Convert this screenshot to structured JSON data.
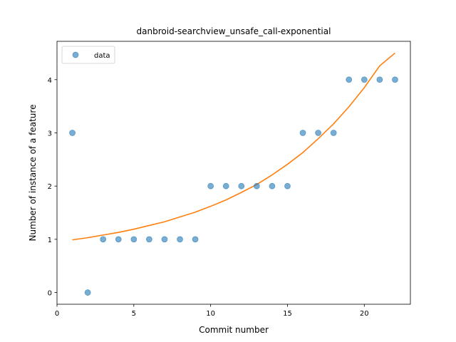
{
  "chart_data": {
    "type": "scatter",
    "title": "danbroid-searchview_unsafe_call-exponential",
    "xlabel": "Commit number",
    "ylabel": "Number of instance of a feature",
    "xlim": [
      0,
      23
    ],
    "ylim": [
      -0.22,
      4.72
    ],
    "xticks": [
      0,
      5,
      10,
      15,
      20
    ],
    "yticks": [
      0,
      1,
      2,
      3,
      4
    ],
    "grid": false,
    "legend_position": "top-left",
    "series": [
      {
        "name": "data",
        "kind": "scatter",
        "color": "#1f77b4",
        "x": [
          1,
          2,
          3,
          4,
          5,
          6,
          7,
          8,
          9,
          10,
          11,
          12,
          13,
          14,
          15,
          16,
          17,
          18,
          19,
          20,
          21,
          22
        ],
        "y": [
          3,
          0,
          1,
          1,
          1,
          1,
          1,
          1,
          1,
          2,
          2,
          2,
          2,
          2,
          2,
          3,
          3,
          3,
          4,
          4,
          4,
          4
        ]
      },
      {
        "kind": "line",
        "color": "#ff7f0e",
        "x": [
          1,
          2,
          3,
          4,
          5,
          6,
          7,
          8,
          9,
          10,
          11,
          12,
          13,
          14,
          15,
          16,
          17,
          18,
          19,
          20,
          21,
          22
        ],
        "y": [
          0.99,
          1.03,
          1.08,
          1.13,
          1.19,
          1.26,
          1.33,
          1.42,
          1.51,
          1.62,
          1.74,
          1.88,
          2.03,
          2.21,
          2.41,
          2.63,
          2.89,
          3.17,
          3.49,
          3.85,
          4.26,
          4.5
        ]
      }
    ]
  }
}
